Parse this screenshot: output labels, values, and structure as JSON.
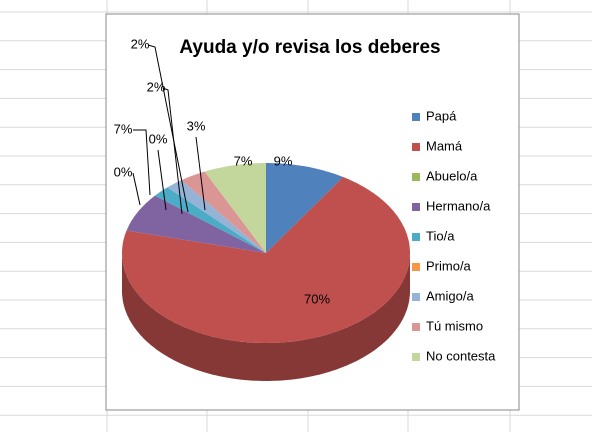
{
  "chart_data": {
    "type": "pie",
    "title": "Ayuda y/o revisa los deberes",
    "categories": [
      "Papá",
      "Mamá",
      "Abuelo/a",
      "Hermano/a",
      "Tio/a",
      "Primo/a",
      "Amigo/a",
      "Tú mismo",
      "No contesta"
    ],
    "values": [
      9,
      70,
      0,
      7,
      2,
      0,
      2,
      3,
      7
    ],
    "value_labels": [
      "9%",
      "70%",
      "0%",
      "7%",
      "2%",
      "0%",
      "2%",
      "3%",
      "7%"
    ],
    "colors": [
      "#4f81bd",
      "#c0504d",
      "#9bbb59",
      "#8064a2",
      "#4bacc6",
      "#f79646",
      "#95b3d7",
      "#d99694",
      "#c3d69b"
    ],
    "legend": "right"
  }
}
